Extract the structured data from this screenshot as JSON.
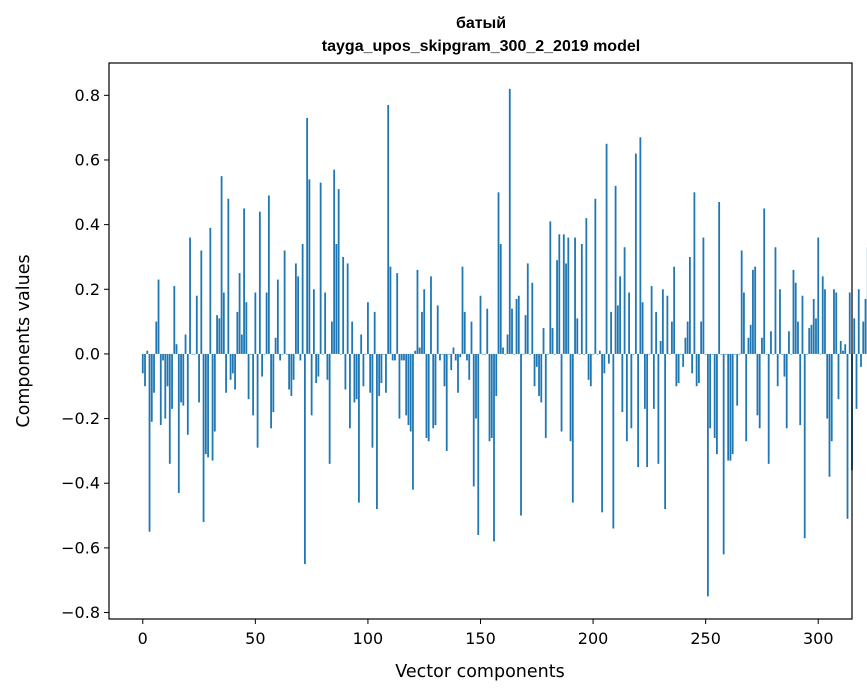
{
  "chart_data": {
    "type": "bar",
    "title": "батый",
    "subtitle": "tayga_upos_skipgram_300_2_2019 model",
    "xlabel": "Vector components",
    "ylabel": "Components values",
    "xlim": [
      -15,
      315
    ],
    "ylim": [
      -0.82,
      0.9
    ],
    "x_ticks": [
      0,
      50,
      100,
      150,
      200,
      250,
      300
    ],
    "y_ticks": [
      -0.8,
      -0.6,
      -0.4,
      -0.2,
      0.0,
      0.2,
      0.4,
      0.6,
      0.8
    ],
    "x_tick_labels": [
      "0",
      "50",
      "100",
      "150",
      "200",
      "250",
      "300"
    ],
    "y_tick_labels": [
      "−0.8",
      "−0.6",
      "−0.4",
      "−0.2",
      "0.0",
      "0.2",
      "0.4",
      "0.6",
      "0.8"
    ],
    "bar_color": "#1f77b4",
    "grid": false,
    "values": [
      -0.06,
      -0.1,
      0.01,
      -0.55,
      -0.21,
      -0.12,
      0.1,
      0.23,
      -0.22,
      -0.02,
      -0.2,
      -0.1,
      -0.34,
      -0.17,
      0.21,
      0.03,
      -0.43,
      -0.15,
      -0.16,
      0.06,
      -0.25,
      0.36,
      0.0,
      0.0,
      0.18,
      -0.15,
      0.32,
      -0.52,
      -0.31,
      -0.32,
      0.39,
      -0.33,
      -0.24,
      0.12,
      0.11,
      0.55,
      0.19,
      -0.12,
      0.48,
      -0.08,
      -0.06,
      -0.11,
      0.13,
      0.25,
      0.06,
      0.45,
      0.16,
      -0.14,
      0.0,
      -0.19,
      0.19,
      -0.29,
      0.44,
      -0.07,
      0.0,
      0.19,
      0.49,
      -0.23,
      -0.18,
      0.05,
      0.23,
      -0.02,
      0.0,
      0.32,
      0.0,
      -0.11,
      -0.13,
      -0.08,
      0.28,
      0.24,
      -0.02,
      0.34,
      -0.65,
      0.73,
      0.54,
      -0.19,
      0.2,
      -0.09,
      -0.07,
      0.53,
      0.0,
      0.19,
      -0.08,
      -0.34,
      0.1,
      0.57,
      0.34,
      0.51,
      0.0,
      0.3,
      -0.11,
      0.28,
      -0.23,
      0.1,
      -0.15,
      -0.14,
      -0.46,
      0.06,
      -0.1,
      0.0,
      0.16,
      -0.12,
      -0.29,
      0.13,
      -0.48,
      -0.13,
      -0.09,
      0.0,
      -0.12,
      0.77,
      0.27,
      -0.02,
      -0.02,
      0.25,
      -0.2,
      -0.02,
      -0.02,
      -0.19,
      -0.22,
      -0.24,
      -0.42,
      0.01,
      0.26,
      0.02,
      0.13,
      0.2,
      -0.26,
      -0.27,
      0.24,
      -0.23,
      -0.22,
      0.15,
      -0.02,
      0.0,
      -0.1,
      -0.3,
      0.0,
      -0.05,
      0.02,
      -0.02,
      -0.12,
      -0.01,
      0.27,
      0.13,
      -0.02,
      -0.08,
      0.1,
      -0.41,
      -0.2,
      -0.56,
      0.18,
      0.0,
      0.0,
      0.14,
      -0.27,
      -0.26,
      -0.58,
      -0.13,
      0.5,
      0.34,
      0.02,
      0.0,
      0.06,
      0.82,
      0.14,
      0.0,
      0.17,
      0.18,
      -0.5,
      0.0,
      0.12,
      0.28,
      0.0,
      0.22,
      -0.1,
      -0.04,
      -0.13,
      -0.15,
      0.08,
      -0.26,
      0.0,
      0.41,
      0.08,
      0.0,
      0.29,
      0.37,
      -0.24,
      0.37,
      0.28,
      0.36,
      -0.27,
      -0.46,
      0.36,
      0.11,
      0.0,
      0.34,
      0.0,
      0.42,
      -0.08,
      -0.1,
      0.0,
      0.48,
      0.0,
      0.01,
      -0.49,
      -0.06,
      0.65,
      -0.03,
      0.13,
      -0.54,
      0.52,
      0.15,
      0.24,
      -0.18,
      0.33,
      -0.27,
      0.19,
      -0.23,
      0.0,
      0.62,
      -0.35,
      0.67,
      0.16,
      -0.17,
      -0.35,
      0.0,
      0.21,
      -0.17,
      0.13,
      -0.34,
      0.04,
      0.2,
      -0.48,
      0.18,
      0.0,
      0.1,
      0.27,
      -0.1,
      -0.09,
      0.0,
      -0.04,
      0.05,
      0.1,
      0.3,
      -0.06,
      0.5,
      -0.1,
      -0.09,
      0.1,
      0.36,
      0.0,
      -0.75,
      -0.23,
      0.0,
      -0.26,
      -0.31,
      0.47,
      0.0,
      -0.62,
      0.0,
      -0.33,
      -0.33,
      -0.31,
      0.0,
      -0.16,
      0.0,
      0.32,
      0.19,
      -0.27,
      0.05,
      0.09,
      0.26,
      0.27,
      -0.19,
      -0.23,
      0.05,
      0.45,
      0.0,
      -0.34,
      0.07,
      0.0,
      0.33,
      -0.1,
      0.2,
      0.0,
      -0.07,
      -0.23,
      0.07,
      0.0,
      0.26,
      0.22,
      0.1,
      -0.22,
      0.18,
      -0.57,
      0.0,
      0.08,
      0.09,
      0.17,
      0.11,
      0.36,
      0.0,
      0.24,
      0.2,
      -0.2,
      -0.38,
      -0.27,
      0.2,
      0.19,
      -0.14,
      0.04,
      0.01,
      0.03,
      -0.51,
      0.19,
      -0.36,
      0.11,
      -0.17,
      0.2,
      -0.04,
      0.1,
      0.17,
      0.33
    ]
  }
}
